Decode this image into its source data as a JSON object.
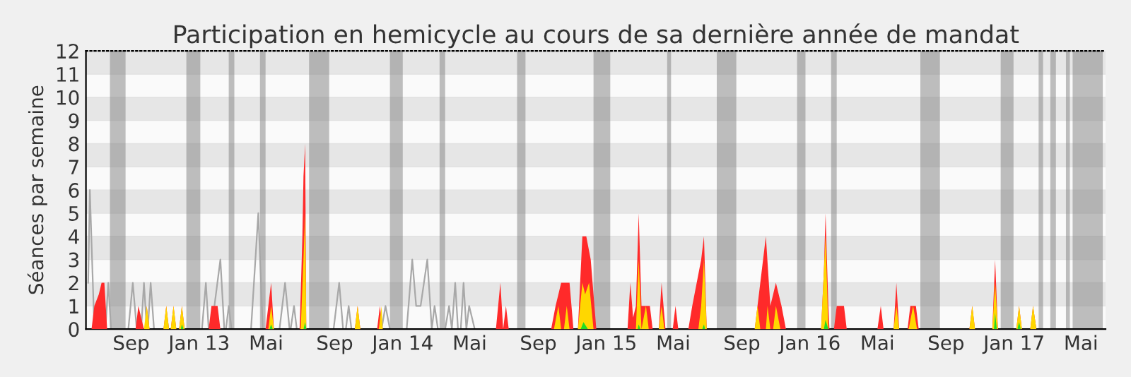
{
  "chart_data": {
    "type": "area",
    "title": "Participation en hemicycle au cours de sa dernière année de mandat",
    "ylabel": "Séances par semaine",
    "xlim": [
      "2012-06-12",
      "2017-06-14"
    ],
    "ylim": [
      0,
      12
    ],
    "yticks": [
      0,
      1,
      2,
      3,
      4,
      5,
      6,
      7,
      8,
      9,
      10,
      11,
      12
    ],
    "xticks": [
      {
        "value": "2012-09-01",
        "label": "Sep"
      },
      {
        "value": "2013-01-01",
        "label": "Jan 13"
      },
      {
        "value": "2013-05-01",
        "label": "Mai"
      },
      {
        "value": "2013-09-01",
        "label": "Sep"
      },
      {
        "value": "2014-01-01",
        "label": "Jan 14"
      },
      {
        "value": "2014-05-01",
        "label": "Mai"
      },
      {
        "value": "2014-09-01",
        "label": "Sep"
      },
      {
        "value": "2015-01-01",
        "label": "Jan 15"
      },
      {
        "value": "2015-05-01",
        "label": "Mai"
      },
      {
        "value": "2015-09-01",
        "label": "Sep"
      },
      {
        "value": "2016-01-01",
        "label": "Jan 16"
      },
      {
        "value": "2016-05-01",
        "label": "Mai"
      },
      {
        "value": "2016-09-01",
        "label": "Sep"
      },
      {
        "value": "2017-01-01",
        "label": "Jan 17"
      },
      {
        "value": "2017-05-01",
        "label": "Mai"
      }
    ],
    "grid": true,
    "bands": [
      {
        "axis": "x",
        "from": "2012-07-25",
        "to": "2012-08-22",
        "color": "#808080"
      },
      {
        "axis": "x",
        "from": "2012-12-09",
        "to": "2013-01-03",
        "color": "#808080"
      },
      {
        "axis": "x",
        "from": "2013-02-23",
        "to": "2013-03-05",
        "color": "#808080"
      },
      {
        "axis": "x",
        "from": "2013-04-20",
        "to": "2013-04-30",
        "color": "#808080"
      },
      {
        "axis": "x",
        "from": "2013-07-17",
        "to": "2013-08-22",
        "color": "#808080"
      },
      {
        "axis": "x",
        "from": "2013-12-09",
        "to": "2014-01-01",
        "color": "#808080"
      },
      {
        "axis": "x",
        "from": "2014-03-08",
        "to": "2014-03-18",
        "color": "#808080"
      },
      {
        "axis": "x",
        "from": "2014-07-25",
        "to": "2014-08-09",
        "color": "#808080"
      },
      {
        "axis": "x",
        "from": "2014-12-09",
        "to": "2015-01-08",
        "color": "#808080"
      },
      {
        "axis": "x",
        "from": "2015-04-20",
        "to": "2015-04-27",
        "color": "#808080"
      },
      {
        "axis": "x",
        "from": "2015-07-18",
        "to": "2015-08-22",
        "color": "#808080"
      },
      {
        "axis": "x",
        "from": "2015-12-09",
        "to": "2015-12-24",
        "color": "#808080"
      },
      {
        "axis": "x",
        "from": "2016-02-08",
        "to": "2016-02-18",
        "color": "#808080"
      },
      {
        "axis": "x",
        "from": "2016-07-17",
        "to": "2016-08-21",
        "color": "#808080"
      },
      {
        "axis": "x",
        "from": "2016-12-08",
        "to": "2016-12-31",
        "color": "#808080"
      },
      {
        "axis": "x",
        "from": "2017-02-14",
        "to": "2017-02-22",
        "color": "#808080"
      },
      {
        "axis": "x",
        "from": "2017-03-07",
        "to": "2017-03-17",
        "color": "#808080"
      },
      {
        "axis": "x",
        "from": "2017-04-04",
        "to": "2017-04-11",
        "color": "#808080"
      },
      {
        "axis": "x",
        "from": "2017-04-16",
        "to": "2017-06-09",
        "color": "#808080"
      }
    ],
    "series": [
      {
        "type": "line",
        "color": "#a8a8a8",
        "x": [
          "2012-06-16",
          "2012-06-19",
          "2012-06-27",
          "2012-07-17",
          "2012-07-22",
          "2012-07-27",
          "2012-08-27",
          "2012-09-04",
          "2012-09-11",
          "2012-09-19",
          "2012-09-24",
          "2012-09-29",
          "2012-10-01",
          "2012-10-06",
          "2012-10-12",
          "2013-01-06",
          "2013-01-13",
          "2013-01-18",
          "2013-01-23",
          "2013-01-31",
          "2013-02-08",
          "2013-02-15",
          "2013-02-18",
          "2013-02-23",
          "2013-02-28",
          "2013-04-04",
          "2013-04-17",
          "2013-04-25",
          "2013-05-25",
          "2013-06-04",
          "2013-06-12",
          "2013-06-14",
          "2013-06-20",
          "2013-06-25",
          "2013-08-30",
          "2013-09-09",
          "2013-09-16",
          "2013-09-21",
          "2013-09-26",
          "2013-10-01",
          "2013-11-24",
          "2013-12-01",
          "2013-12-09",
          "2014-01-08",
          "2014-01-18",
          "2014-01-25",
          "2014-02-02",
          "2014-02-14",
          "2014-02-22",
          "2014-02-27",
          "2014-03-05",
          "2014-03-18",
          "2014-03-25",
          "2014-03-30",
          "2014-04-05",
          "2014-04-10",
          "2014-04-15",
          "2014-04-20",
          "2014-04-25",
          "2014-04-30",
          "2014-05-10"
        ],
        "values": [
          2,
          6,
          0,
          0,
          2,
          0,
          0,
          2,
          0,
          0,
          2,
          0,
          0,
          2,
          0,
          0,
          2,
          0,
          0,
          1.5,
          3,
          0,
          0,
          1,
          0,
          0,
          5,
          0,
          0,
          2,
          0,
          0,
          1,
          0,
          0,
          2,
          0,
          0,
          1,
          0,
          0,
          1,
          0,
          0,
          3,
          1,
          1,
          3,
          0,
          1,
          0,
          0,
          1,
          0,
          2,
          0,
          0,
          2,
          0,
          1,
          0
        ]
      },
      {
        "color": "#ff2a2a",
        "x": [
          "2012-06-22",
          "2012-06-27",
          "2012-07-05",
          "2012-07-10",
          "2012-07-15",
          "2012-07-20",
          "2012-09-09",
          "2012-09-14",
          "2012-09-19",
          "2012-09-24",
          "2012-09-26",
          "2012-09-29",
          "2012-10-04",
          "2012-10-29",
          "2012-11-03",
          "2012-11-08",
          "2012-11-11",
          "2012-11-16",
          "2012-11-21",
          "2012-11-26",
          "2012-12-01",
          "2012-12-06",
          "2013-01-18",
          "2013-01-23",
          "2013-02-03",
          "2013-02-08",
          "2013-04-30",
          "2013-05-05",
          "2013-05-10",
          "2013-05-15",
          "2013-06-30",
          "2013-07-02",
          "2013-07-05",
          "2013-07-07",
          "2013-07-10",
          "2013-07-12",
          "2013-10-07",
          "2013-10-12",
          "2013-10-17",
          "2013-11-16",
          "2013-11-21",
          "2013-11-26",
          "2014-06-17",
          "2014-06-25",
          "2014-06-30",
          "2014-07-05",
          "2014-07-10",
          "2014-09-24",
          "2014-10-02",
          "2014-10-07",
          "2014-10-12",
          "2014-10-27",
          "2014-11-03",
          "2014-11-11",
          "2014-11-19",
          "2014-11-26",
          "2014-12-04",
          "2014-12-09",
          "2014-12-14",
          "2015-02-08",
          "2015-02-13",
          "2015-02-18",
          "2015-02-23",
          "2015-02-28",
          "2015-03-05",
          "2015-03-13",
          "2015-03-20",
          "2015-03-25",
          "2015-04-05",
          "2015-04-10",
          "2015-04-17",
          "2015-04-30",
          "2015-05-05",
          "2015-05-10",
          "2015-05-28",
          "2015-06-04",
          "2015-06-12",
          "2015-06-20",
          "2015-06-25",
          "2015-06-30",
          "2015-09-24",
          "2015-09-29",
          "2015-10-04",
          "2015-10-14",
          "2015-10-22",
          "2015-10-27",
          "2015-11-01",
          "2015-11-11",
          "2015-11-19",
          "2016-01-21",
          "2016-01-26",
          "2016-01-29",
          "2016-02-03",
          "2016-02-05",
          "2016-02-13",
          "2016-02-18",
          "2016-03-02",
          "2016-03-07",
          "2016-05-01",
          "2016-05-07",
          "2016-05-12",
          "2016-05-30",
          "2016-06-04",
          "2016-06-09",
          "2016-06-24",
          "2016-06-29",
          "2016-07-09",
          "2016-07-14",
          "2016-10-13",
          "2016-10-18",
          "2016-10-23",
          "2016-11-23",
          "2016-11-28",
          "2016-12-03",
          "2017-01-05",
          "2017-01-10",
          "2017-01-15",
          "2017-01-30",
          "2017-02-04",
          "2017-02-10"
        ],
        "values": [
          0,
          1,
          1.5,
          2,
          2,
          0,
          0,
          1,
          0.5,
          0,
          0,
          1,
          0,
          0,
          1,
          0,
          0,
          1,
          0,
          0,
          1,
          0,
          0,
          1,
          1,
          0,
          0,
          1,
          2,
          0,
          0,
          1.5,
          4,
          6.6,
          8,
          0,
          0,
          1,
          0,
          0,
          1,
          0,
          0,
          2,
          0,
          1,
          0,
          0,
          1,
          1.5,
          2,
          2,
          0,
          0,
          4,
          4,
          3,
          1.5,
          0,
          0,
          2,
          0.5,
          1,
          5,
          1,
          1,
          1,
          0,
          0,
          2,
          0,
          0,
          1,
          0,
          0,
          1,
          2,
          3,
          4,
          0,
          0,
          1,
          2,
          4,
          1,
          1.5,
          2,
          1,
          0,
          0,
          2.5,
          5,
          1,
          0,
          0,
          1,
          1,
          0,
          0,
          1,
          0,
          0,
          2,
          0,
          0,
          1,
          1,
          0,
          0,
          1,
          0,
          0,
          3,
          0,
          0,
          1,
          0,
          0,
          1,
          0
        ]
      },
      {
        "color": "#ffd700",
        "x": [
          "2012-09-24",
          "2012-09-29",
          "2012-10-04",
          "2012-10-29",
          "2012-11-03",
          "2012-11-08",
          "2012-11-11",
          "2012-11-16",
          "2012-11-21",
          "2012-11-26",
          "2012-12-01",
          "2012-12-06",
          "2013-05-05",
          "2013-05-10",
          "2013-05-15",
          "2013-07-02",
          "2013-07-07",
          "2013-07-10",
          "2013-07-12",
          "2013-10-07",
          "2013-10-12",
          "2013-10-17",
          "2013-11-19",
          "2013-11-24",
          "2013-11-26",
          "2014-09-29",
          "2014-10-07",
          "2014-10-12",
          "2014-10-17",
          "2014-10-22",
          "2014-10-27",
          "2014-11-11",
          "2014-11-19",
          "2014-11-24",
          "2014-12-01",
          "2014-12-09",
          "2015-02-23",
          "2015-02-28",
          "2015-03-05",
          "2015-03-13",
          "2015-03-18",
          "2015-04-05",
          "2015-04-10",
          "2015-04-15",
          "2015-06-15",
          "2015-06-20",
          "2015-06-25",
          "2015-06-30",
          "2015-09-24",
          "2015-09-29",
          "2015-10-04",
          "2015-10-14",
          "2015-10-17",
          "2015-10-22",
          "2015-10-27",
          "2015-11-01",
          "2015-11-09",
          "2016-01-21",
          "2016-01-29",
          "2016-02-03",
          "2016-05-30",
          "2016-06-04",
          "2016-06-09",
          "2016-06-26",
          "2016-07-04",
          "2016-07-11",
          "2016-10-13",
          "2016-10-18",
          "2016-10-23",
          "2016-11-23",
          "2016-11-28",
          "2016-12-03",
          "2017-01-05",
          "2017-01-10",
          "2017-01-15",
          "2017-01-30",
          "2017-02-04",
          "2017-02-10"
        ],
        "values": [
          0,
          1,
          0,
          0,
          1,
          0,
          0,
          1,
          0,
          0,
          1,
          0,
          0,
          1,
          0,
          0,
          3,
          5,
          0,
          0,
          1,
          0,
          0,
          1,
          0,
          0,
          1,
          0,
          0,
          1,
          0,
          0,
          2,
          1.5,
          2,
          0,
          0,
          3,
          0,
          1,
          0,
          0,
          1,
          0,
          0,
          1,
          3,
          0,
          0,
          1,
          0,
          0,
          1,
          0,
          0,
          1,
          0,
          0,
          4,
          0,
          0,
          1,
          0,
          0,
          1,
          0,
          0,
          1,
          0,
          0,
          2,
          0,
          0,
          1,
          0,
          0,
          1,
          0
        ]
      },
      {
        "color": "#22dd22",
        "x": [
          "2012-11-29",
          "2012-12-01",
          "2012-12-04",
          "2013-05-07",
          "2013-05-10",
          "2013-05-13",
          "2013-07-07",
          "2013-07-10",
          "2013-07-12",
          "2014-11-16",
          "2014-11-21",
          "2014-11-29",
          "2015-02-26",
          "2015-02-28",
          "2015-03-03",
          "2015-06-22",
          "2015-06-25",
          "2015-06-27",
          "2016-01-26",
          "2016-01-29",
          "2016-02-03",
          "2016-11-26",
          "2016-11-28",
          "2016-12-01",
          "2017-01-07",
          "2017-01-10",
          "2017-01-13"
        ],
        "values": [
          0,
          0.2,
          0,
          0,
          0.2,
          0,
          0,
          0.3,
          0,
          0,
          0.3,
          0,
          0,
          0.2,
          0,
          0,
          0.2,
          0,
          0,
          0.4,
          0,
          0,
          0.7,
          0,
          0,
          0.3,
          0
        ]
      }
    ]
  }
}
